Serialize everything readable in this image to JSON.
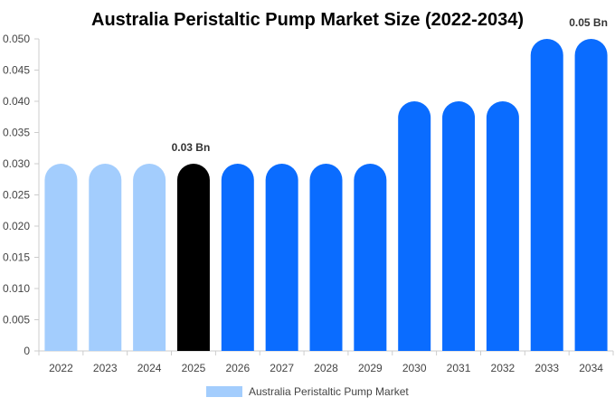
{
  "chart_data": {
    "type": "bar",
    "title": "Australia Peristaltic Pump Market Size (2022-2034)",
    "categories": [
      "2022",
      "2023",
      "2024",
      "2025",
      "2026",
      "2027",
      "2028",
      "2029",
      "2030",
      "2031",
      "2032",
      "2033",
      "2034"
    ],
    "series": [
      {
        "name": "Australia Peristaltic Pump Market",
        "values": [
          0.03,
          0.03,
          0.03,
          0.03,
          0.03,
          0.03,
          0.03,
          0.03,
          0.04,
          0.04,
          0.04,
          0.05,
          0.05
        ]
      }
    ],
    "bar_colors": [
      "#a3cdfd",
      "#a3cdfd",
      "#a3cdfd",
      "#000000",
      "#0a6cff",
      "#0a6cff",
      "#0a6cff",
      "#0a6cff",
      "#0a6cff",
      "#0a6cff",
      "#0a6cff",
      "#0a6cff",
      "#0a6cff"
    ],
    "data_labels": [
      {
        "category": "2025",
        "text": "0.03 Bn"
      },
      {
        "category": "2034",
        "text": "0.05 Bn"
      }
    ],
    "ylim": [
      0,
      0.05
    ],
    "yticks": [
      "0",
      "0.005",
      "0.010",
      "0.015",
      "0.020",
      "0.025",
      "0.030",
      "0.035",
      "0.040",
      "0.045",
      "0.050"
    ],
    "ytick_values": [
      0,
      0.005,
      0.01,
      0.015,
      0.02,
      0.025,
      0.03,
      0.035,
      0.04,
      0.045,
      0.05
    ],
    "grid": false,
    "legend": {
      "position": "bottom",
      "label": "Australia Peristaltic Pump Market",
      "color": "#a3cdfd"
    },
    "xlabel": "",
    "ylabel": ""
  }
}
